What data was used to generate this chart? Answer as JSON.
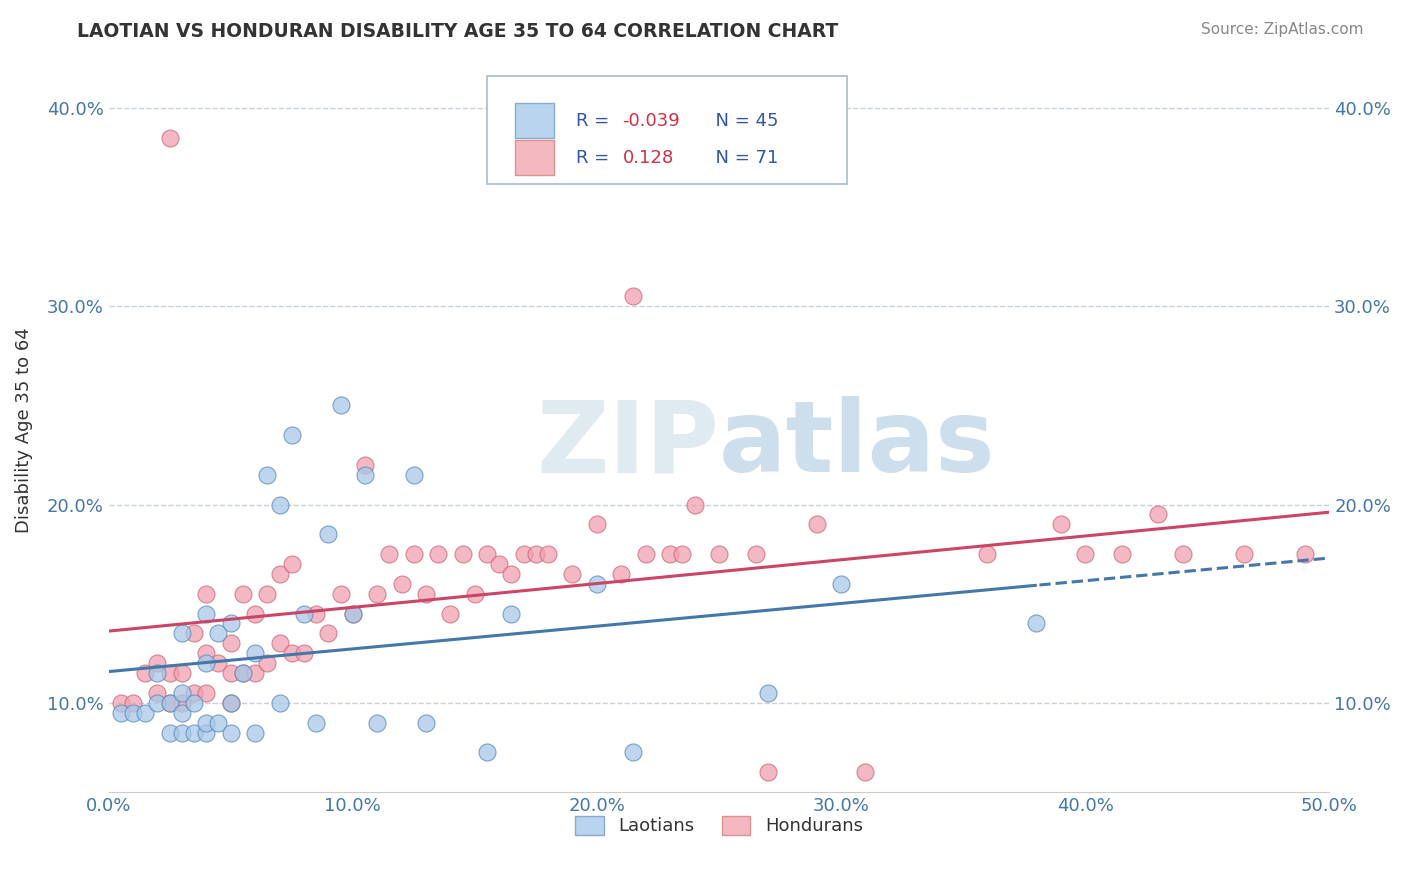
{
  "title": "LAOTIAN VS HONDURAN DISABILITY AGE 35 TO 64 CORRELATION CHART",
  "source": "Source: ZipAtlas.com",
  "ylabel": "Disability Age 35 to 64",
  "xlim": [
    0.0,
    0.5
  ],
  "ylim": [
    0.055,
    0.42
  ],
  "xticks": [
    0.0,
    0.1,
    0.2,
    0.3,
    0.4,
    0.5
  ],
  "yticks": [
    0.1,
    0.2,
    0.3,
    0.4
  ],
  "legend_r_blue": "-0.039",
  "legend_n_blue": "45",
  "legend_r_pink": "0.128",
  "legend_n_pink": "71",
  "blue_scatter_color": "#a8c8e8",
  "blue_edge_color": "#5588bb",
  "pink_scatter_color": "#f0a0b0",
  "pink_edge_color": "#cc6677",
  "blue_line_color": "#4477aa",
  "pink_line_color": "#cc4466",
  "title_color": "#333333",
  "source_color": "#888888",
  "axis_label_color": "#333333",
  "tick_label_color": "#4477aa",
  "grid_color": "#c8d0dc",
  "background_color": "#ffffff",
  "legend_box_color": "#aabbcc",
  "legend_text_color": "#3355aa",
  "legend_r_color": "#cc3344",
  "blue_scatter_x": [
    0.005,
    0.01,
    0.015,
    0.02,
    0.02,
    0.025,
    0.025,
    0.03,
    0.03,
    0.03,
    0.03,
    0.035,
    0.035,
    0.04,
    0.04,
    0.04,
    0.04,
    0.045,
    0.045,
    0.05,
    0.05,
    0.05,
    0.055,
    0.06,
    0.06,
    0.065,
    0.07,
    0.07,
    0.075,
    0.08,
    0.085,
    0.09,
    0.095,
    0.1,
    0.105,
    0.11,
    0.125,
    0.13,
    0.155,
    0.165,
    0.2,
    0.215,
    0.27,
    0.3,
    0.38
  ],
  "blue_scatter_y": [
    0.095,
    0.095,
    0.095,
    0.1,
    0.115,
    0.085,
    0.1,
    0.085,
    0.095,
    0.105,
    0.135,
    0.085,
    0.1,
    0.085,
    0.09,
    0.12,
    0.145,
    0.09,
    0.135,
    0.085,
    0.1,
    0.14,
    0.115,
    0.085,
    0.125,
    0.215,
    0.1,
    0.2,
    0.235,
    0.145,
    0.09,
    0.185,
    0.25,
    0.145,
    0.215,
    0.09,
    0.215,
    0.09,
    0.075,
    0.145,
    0.16,
    0.075,
    0.105,
    0.16,
    0.14
  ],
  "pink_scatter_x": [
    0.005,
    0.01,
    0.015,
    0.02,
    0.02,
    0.025,
    0.025,
    0.025,
    0.03,
    0.03,
    0.035,
    0.035,
    0.04,
    0.04,
    0.04,
    0.045,
    0.05,
    0.05,
    0.05,
    0.055,
    0.055,
    0.06,
    0.06,
    0.065,
    0.065,
    0.07,
    0.07,
    0.075,
    0.075,
    0.08,
    0.085,
    0.09,
    0.095,
    0.1,
    0.105,
    0.11,
    0.115,
    0.12,
    0.125,
    0.13,
    0.135,
    0.14,
    0.145,
    0.15,
    0.155,
    0.16,
    0.165,
    0.17,
    0.175,
    0.18,
    0.19,
    0.2,
    0.21,
    0.215,
    0.22,
    0.23,
    0.235,
    0.24,
    0.25,
    0.265,
    0.27,
    0.29,
    0.31,
    0.36,
    0.39,
    0.4,
    0.415,
    0.43,
    0.44,
    0.465,
    0.49
  ],
  "pink_scatter_y": [
    0.1,
    0.1,
    0.115,
    0.105,
    0.12,
    0.1,
    0.115,
    0.385,
    0.1,
    0.115,
    0.105,
    0.135,
    0.105,
    0.125,
    0.155,
    0.12,
    0.1,
    0.115,
    0.13,
    0.115,
    0.155,
    0.115,
    0.145,
    0.12,
    0.155,
    0.13,
    0.165,
    0.125,
    0.17,
    0.125,
    0.145,
    0.135,
    0.155,
    0.145,
    0.22,
    0.155,
    0.175,
    0.16,
    0.175,
    0.155,
    0.175,
    0.145,
    0.175,
    0.155,
    0.175,
    0.17,
    0.165,
    0.175,
    0.175,
    0.175,
    0.165,
    0.19,
    0.165,
    0.305,
    0.175,
    0.175,
    0.175,
    0.2,
    0.175,
    0.175,
    0.065,
    0.19,
    0.065,
    0.175,
    0.19,
    0.175,
    0.175,
    0.195,
    0.175,
    0.175,
    0.175
  ]
}
